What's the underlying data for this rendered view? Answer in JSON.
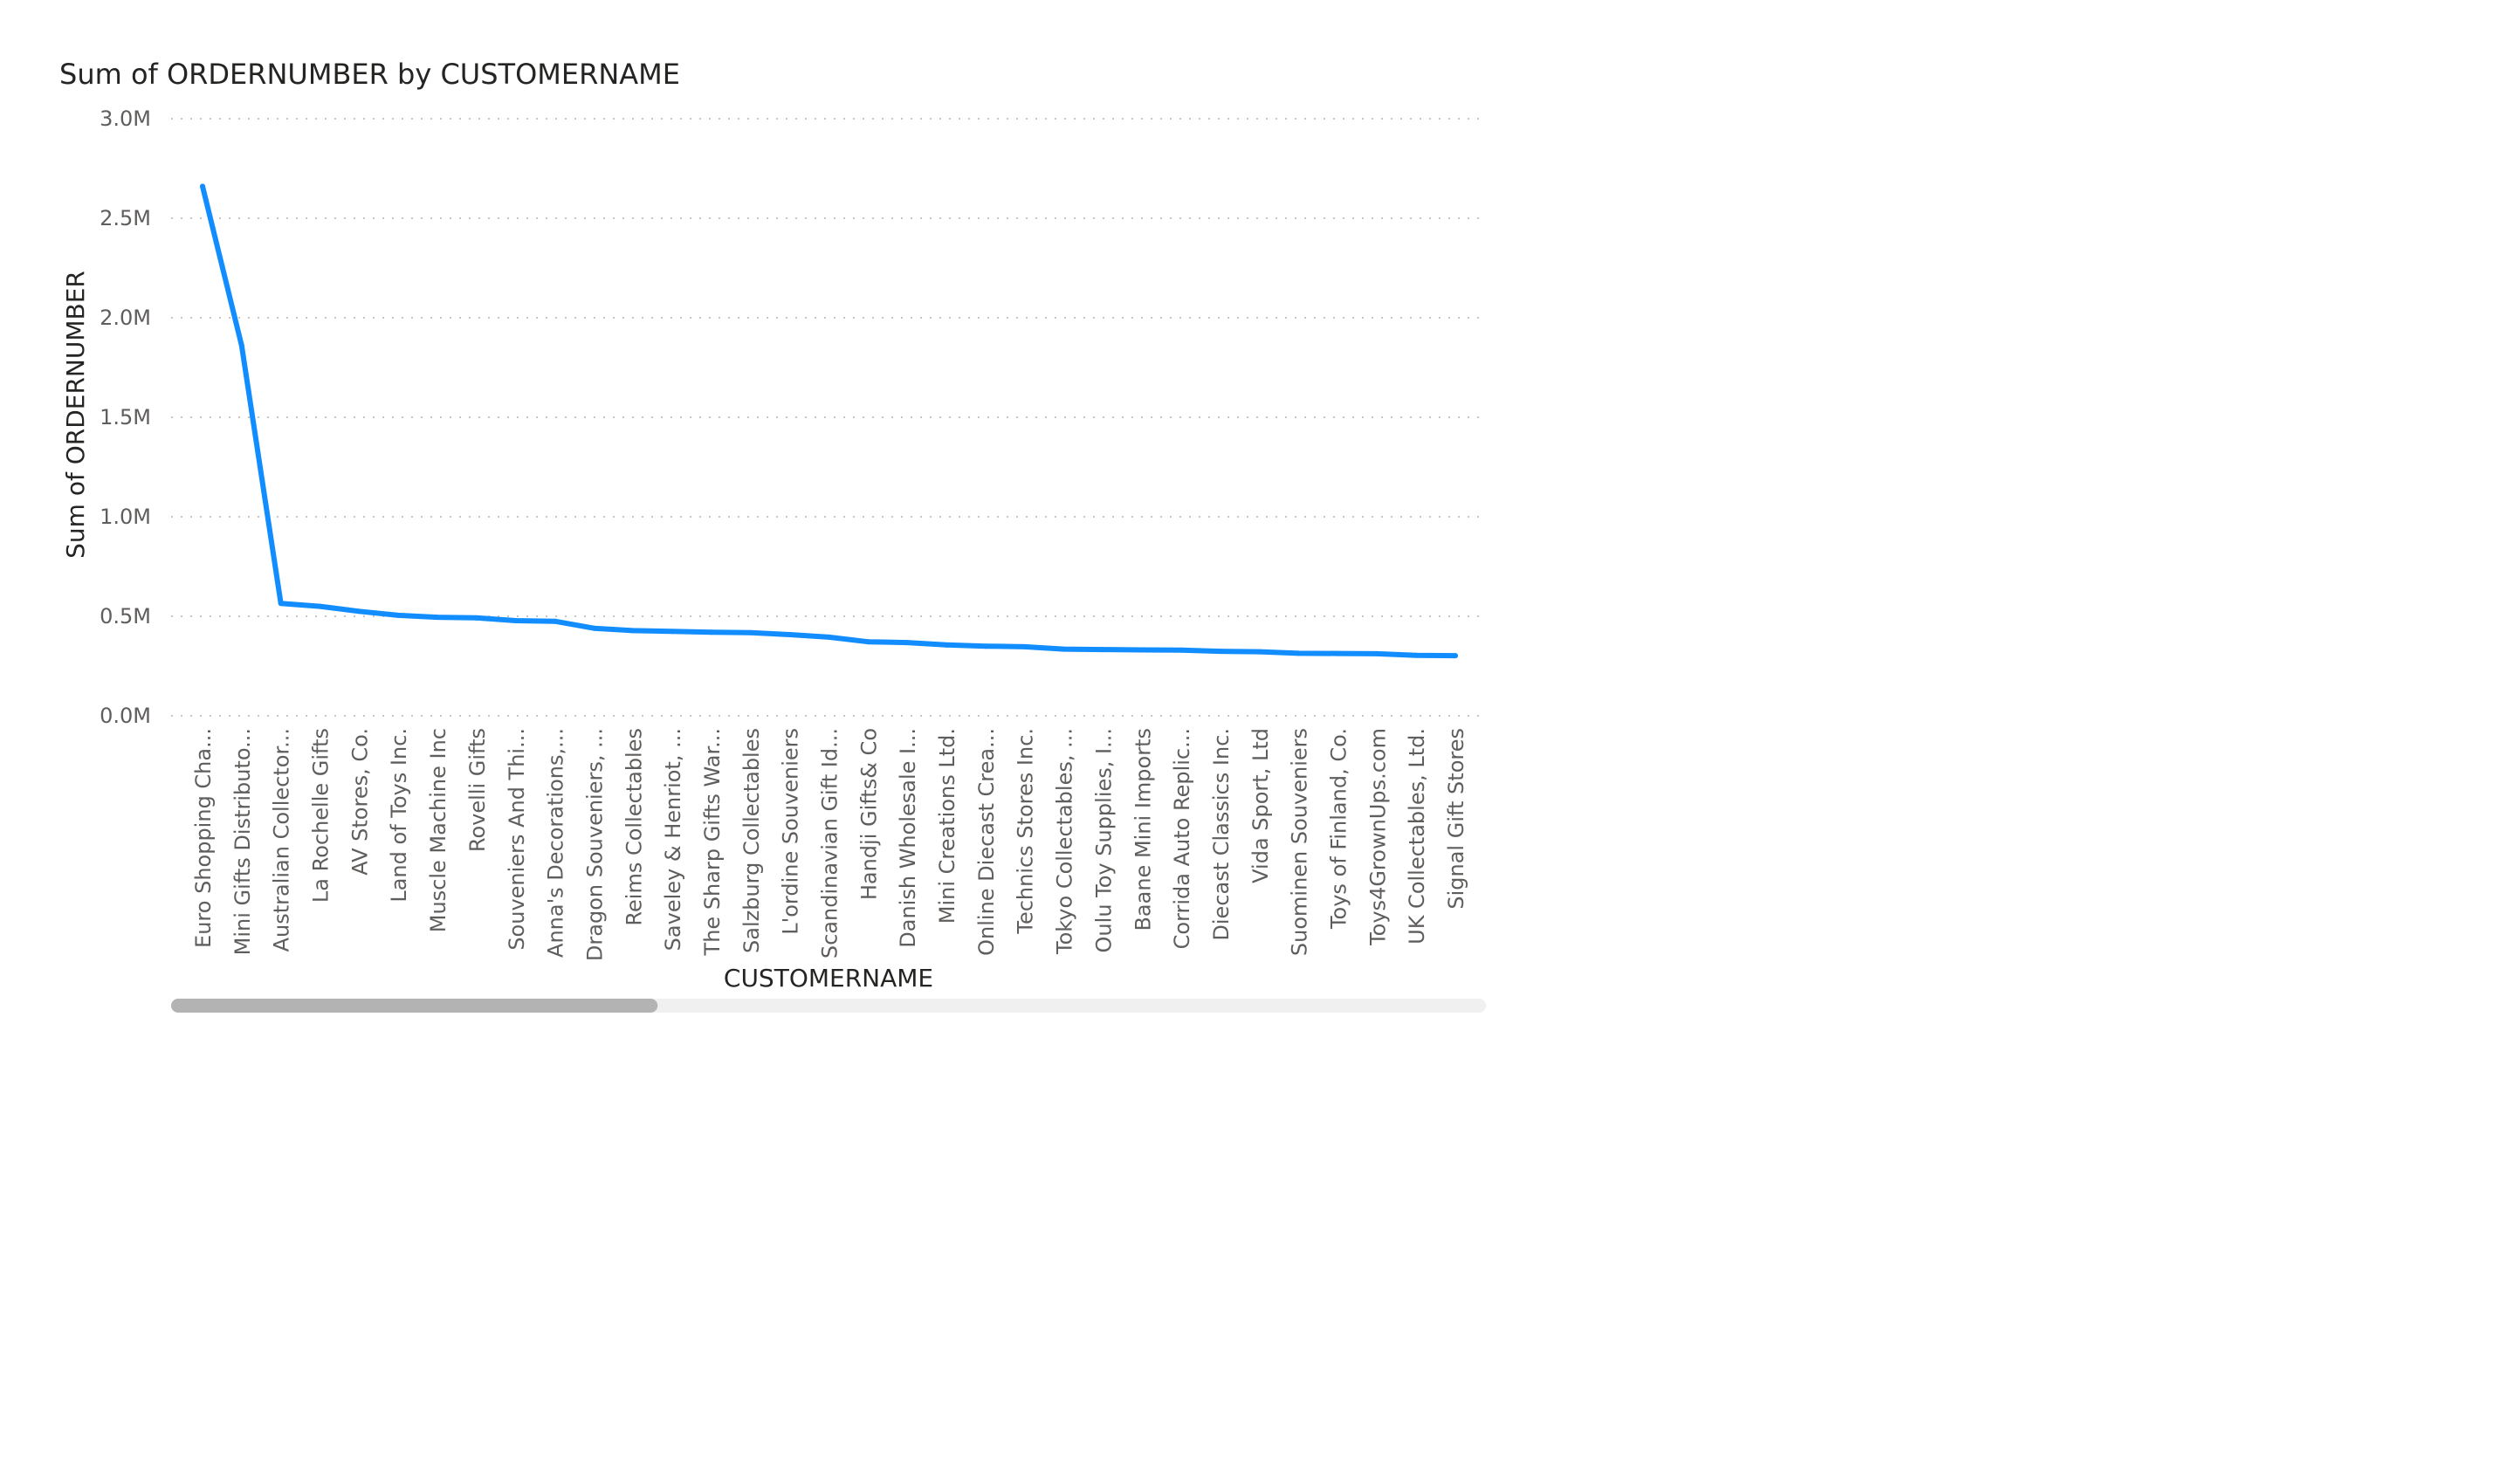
{
  "chart_data": {
    "type": "line",
    "title": "Sum of ORDERNUMBER by CUSTOMERNAME",
    "xlabel": "CUSTOMERNAME",
    "ylabel": "Sum of ORDERNUMBER",
    "ylim": [
      0,
      3000000
    ],
    "yticks": [
      {
        "value": 0,
        "label": "0.0M"
      },
      {
        "value": 500000,
        "label": "0.5M"
      },
      {
        "value": 1000000,
        "label": "1.0M"
      },
      {
        "value": 1500000,
        "label": "1.5M"
      },
      {
        "value": 2000000,
        "label": "2.0M"
      },
      {
        "value": 2500000,
        "label": "2.5M"
      },
      {
        "value": 3000000,
        "label": "3.0M"
      }
    ],
    "grid": true,
    "legend": "none",
    "categories": [
      "Euro Shopping Cha...",
      "Mini Gifts Distributo...",
      "Australian Collector...",
      "La Rochelle Gifts",
      "AV Stores, Co.",
      "Land of Toys Inc.",
      "Muscle Machine Inc",
      "Rovelli Gifts",
      "Souveniers And Thi...",
      "Anna's Decorations,...",
      "Dragon Souveniers, ...",
      "Reims Collectables",
      "Saveley & Henriot, ...",
      "The Sharp Gifts War...",
      "Salzburg Collectables",
      "L'ordine Souveniers",
      "Scandinavian Gift Id...",
      "Handji Gifts& Co",
      "Danish Wholesale I...",
      "Mini Creations Ltd.",
      "Online Diecast Crea...",
      "Technics Stores Inc.",
      "Tokyo Collectables, ...",
      "Oulu Toy Supplies, I...",
      "Baane Mini Imports",
      "Corrida Auto Replic...",
      "Diecast Classics Inc.",
      "Vida Sport, Ltd",
      "Suominen Souveniers",
      "Toys of Finland, Co.",
      "Toys4GrownUps.com",
      "UK Collectables, Ltd.",
      "Signal Gift Stores"
    ],
    "series": [
      {
        "color": "#118dff",
        "values": [
          2660000,
          1860000,
          565000,
          550000,
          525000,
          505000,
          495000,
          492000,
          478000,
          475000,
          440000,
          428000,
          424000,
          420000,
          418000,
          408000,
          395000,
          372000,
          368000,
          356000,
          350000,
          347000,
          335000,
          333000,
          331000,
          330000,
          324000,
          322000,
          314000,
          313000,
          312000,
          304000,
          302000
        ]
      }
    ]
  },
  "scrollbar": {
    "position": 0,
    "visible_fraction": 0.37
  }
}
